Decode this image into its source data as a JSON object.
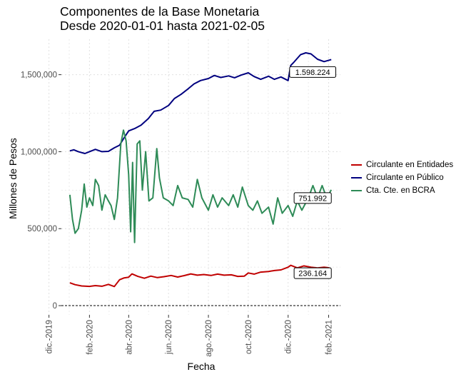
{
  "chart_data": {
    "type": "line",
    "title": "Componentes de la Base Monetaria",
    "subtitle": "Desde 2020-01-01 hasta 2021-02-05",
    "xlabel": "Fecha",
    "ylabel": "Millones de Pesos",
    "x_ticks": [
      {
        "date": "2019-12-01",
        "label": "dic.-2019"
      },
      {
        "date": "2020-02-01",
        "label": "feb.-2020"
      },
      {
        "date": "2020-04-01",
        "label": "abr.-2020"
      },
      {
        "date": "2020-06-01",
        "label": "jun.-2020"
      },
      {
        "date": "2020-08-01",
        "label": "ago.-2020"
      },
      {
        "date": "2020-10-01",
        "label": "oct.-2020"
      },
      {
        "date": "2020-12-01",
        "label": "dic.-2020"
      },
      {
        "date": "2021-02-01",
        "label": "feb.-2021"
      }
    ],
    "y_ticks": [
      {
        "value": 0,
        "label": "0"
      },
      {
        "value": 500000,
        "label": "500,000"
      },
      {
        "value": 1000000,
        "label": "1,000,000"
      },
      {
        "value": 1500000,
        "label": "1,500,000"
      }
    ],
    "xlim": [
      "2019-12-20",
      "2021-02-19"
    ],
    "ylim": [
      -60000,
      1730000
    ],
    "grid": true,
    "legend_position": "right",
    "zero_line": "dashed",
    "series": [
      {
        "name": "Circulante en Entidades",
        "color": "#c00000",
        "end_label": "236.164",
        "points": [
          [
            "2020-01-02",
            148000
          ],
          [
            "2020-01-10",
            136000
          ],
          [
            "2020-01-20",
            128000
          ],
          [
            "2020-02-01",
            125000
          ],
          [
            "2020-02-10",
            130000
          ],
          [
            "2020-02-20",
            126000
          ],
          [
            "2020-03-01",
            138000
          ],
          [
            "2020-03-10",
            124000
          ],
          [
            "2020-03-18",
            168000
          ],
          [
            "2020-03-25",
            180000
          ],
          [
            "2020-04-01",
            185000
          ],
          [
            "2020-04-06",
            206000
          ],
          [
            "2020-04-15",
            190000
          ],
          [
            "2020-04-25",
            178000
          ],
          [
            "2020-05-05",
            192000
          ],
          [
            "2020-05-15",
            182000
          ],
          [
            "2020-05-25",
            188000
          ],
          [
            "2020-06-05",
            196000
          ],
          [
            "2020-06-15",
            186000
          ],
          [
            "2020-06-25",
            195000
          ],
          [
            "2020-07-05",
            206000
          ],
          [
            "2020-07-15",
            198000
          ],
          [
            "2020-07-25",
            202000
          ],
          [
            "2020-08-05",
            196000
          ],
          [
            "2020-08-15",
            205000
          ],
          [
            "2020-08-25",
            198000
          ],
          [
            "2020-09-05",
            200000
          ],
          [
            "2020-09-15",
            190000
          ],
          [
            "2020-09-25",
            192000
          ],
          [
            "2020-10-01",
            212000
          ],
          [
            "2020-10-10",
            205000
          ],
          [
            "2020-10-20",
            218000
          ],
          [
            "2020-11-01",
            222000
          ],
          [
            "2020-11-10",
            228000
          ],
          [
            "2020-11-20",
            232000
          ],
          [
            "2020-12-01",
            250000
          ],
          [
            "2020-12-05",
            262000
          ],
          [
            "2020-12-15",
            245000
          ],
          [
            "2020-12-25",
            258000
          ],
          [
            "2021-01-05",
            250000
          ],
          [
            "2021-01-15",
            245000
          ],
          [
            "2021-01-25",
            250000
          ],
          [
            "2021-02-01",
            246000
          ],
          [
            "2021-02-05",
            236164
          ]
        ]
      },
      {
        "name": "Circulante en Público",
        "color": "#00007f",
        "end_label": "1.598.224",
        "points": [
          [
            "2020-01-02",
            1005000
          ],
          [
            "2020-01-08",
            1012000
          ],
          [
            "2020-01-15",
            1000000
          ],
          [
            "2020-01-25",
            988000
          ],
          [
            "2020-02-01",
            1000000
          ],
          [
            "2020-02-10",
            1015000
          ],
          [
            "2020-02-20",
            1000000
          ],
          [
            "2020-03-01",
            1002000
          ],
          [
            "2020-03-10",
            1025000
          ],
          [
            "2020-03-18",
            1042000
          ],
          [
            "2020-03-25",
            1090000
          ],
          [
            "2020-04-01",
            1135000
          ],
          [
            "2020-04-10",
            1150000
          ],
          [
            "2020-04-20",
            1172000
          ],
          [
            "2020-05-01",
            1215000
          ],
          [
            "2020-05-10",
            1262000
          ],
          [
            "2020-05-20",
            1270000
          ],
          [
            "2020-06-01",
            1300000
          ],
          [
            "2020-06-10",
            1345000
          ],
          [
            "2020-06-20",
            1372000
          ],
          [
            "2020-07-01",
            1408000
          ],
          [
            "2020-07-10",
            1440000
          ],
          [
            "2020-07-20",
            1462000
          ],
          [
            "2020-08-01",
            1475000
          ],
          [
            "2020-08-10",
            1495000
          ],
          [
            "2020-08-20",
            1482000
          ],
          [
            "2020-09-01",
            1492000
          ],
          [
            "2020-09-10",
            1480000
          ],
          [
            "2020-09-20",
            1497000
          ],
          [
            "2020-10-01",
            1512000
          ],
          [
            "2020-10-10",
            1488000
          ],
          [
            "2020-10-20",
            1470000
          ],
          [
            "2020-11-01",
            1490000
          ],
          [
            "2020-11-10",
            1470000
          ],
          [
            "2020-11-20",
            1485000
          ],
          [
            "2020-12-01",
            1462000
          ],
          [
            "2020-12-05",
            1560000
          ],
          [
            "2020-12-10",
            1582000
          ],
          [
            "2020-12-20",
            1630000
          ],
          [
            "2020-12-28",
            1642000
          ],
          [
            "2021-01-05",
            1635000
          ],
          [
            "2021-01-15",
            1600000
          ],
          [
            "2021-01-25",
            1585000
          ],
          [
            "2021-02-05",
            1598224
          ]
        ]
      },
      {
        "name": "Cta. Cte. en BCRA",
        "color": "#2e8b57",
        "end_label": "751.992",
        "points": [
          [
            "2020-01-02",
            720000
          ],
          [
            "2020-01-06",
            560000
          ],
          [
            "2020-01-10",
            470000
          ],
          [
            "2020-01-15",
            500000
          ],
          [
            "2020-01-20",
            620000
          ],
          [
            "2020-01-24",
            790000
          ],
          [
            "2020-01-28",
            640000
          ],
          [
            "2020-02-01",
            700000
          ],
          [
            "2020-02-06",
            650000
          ],
          [
            "2020-02-10",
            820000
          ],
          [
            "2020-02-15",
            780000
          ],
          [
            "2020-02-20",
            620000
          ],
          [
            "2020-02-25",
            720000
          ],
          [
            "2020-03-01",
            680000
          ],
          [
            "2020-03-05",
            650000
          ],
          [
            "2020-03-10",
            560000
          ],
          [
            "2020-03-15",
            700000
          ],
          [
            "2020-03-20",
            1050000
          ],
          [
            "2020-03-24",
            1140000
          ],
          [
            "2020-03-28",
            1070000
          ],
          [
            "2020-04-01",
            850000
          ],
          [
            "2020-04-04",
            480000
          ],
          [
            "2020-04-07",
            930000
          ],
          [
            "2020-04-10",
            410000
          ],
          [
            "2020-04-14",
            1050000
          ],
          [
            "2020-04-18",
            1070000
          ],
          [
            "2020-04-22",
            750000
          ],
          [
            "2020-04-27",
            1000000
          ],
          [
            "2020-05-02",
            680000
          ],
          [
            "2020-05-08",
            700000
          ],
          [
            "2020-05-14",
            1020000
          ],
          [
            "2020-05-18",
            830000
          ],
          [
            "2020-05-24",
            700000
          ],
          [
            "2020-06-01",
            680000
          ],
          [
            "2020-06-08",
            650000
          ],
          [
            "2020-06-15",
            780000
          ],
          [
            "2020-06-22",
            700000
          ],
          [
            "2020-07-01",
            690000
          ],
          [
            "2020-07-08",
            640000
          ],
          [
            "2020-07-15",
            820000
          ],
          [
            "2020-07-22",
            700000
          ],
          [
            "2020-08-01",
            620000
          ],
          [
            "2020-08-08",
            720000
          ],
          [
            "2020-08-15",
            640000
          ],
          [
            "2020-08-22",
            700000
          ],
          [
            "2020-09-01",
            650000
          ],
          [
            "2020-09-08",
            720000
          ],
          [
            "2020-09-15",
            640000
          ],
          [
            "2020-09-22",
            770000
          ],
          [
            "2020-10-01",
            650000
          ],
          [
            "2020-10-08",
            620000
          ],
          [
            "2020-10-15",
            680000
          ],
          [
            "2020-10-22",
            600000
          ],
          [
            "2020-11-01",
            640000
          ],
          [
            "2020-11-08",
            530000
          ],
          [
            "2020-11-15",
            700000
          ],
          [
            "2020-11-22",
            600000
          ],
          [
            "2020-12-01",
            650000
          ],
          [
            "2020-12-08",
            580000
          ],
          [
            "2020-12-15",
            680000
          ],
          [
            "2020-12-22",
            620000
          ],
          [
            "2021-01-01",
            700000
          ],
          [
            "2021-01-08",
            780000
          ],
          [
            "2021-01-15",
            700000
          ],
          [
            "2021-01-22",
            780000
          ],
          [
            "2021-01-29",
            700000
          ],
          [
            "2021-02-05",
            751992
          ]
        ]
      }
    ]
  }
}
